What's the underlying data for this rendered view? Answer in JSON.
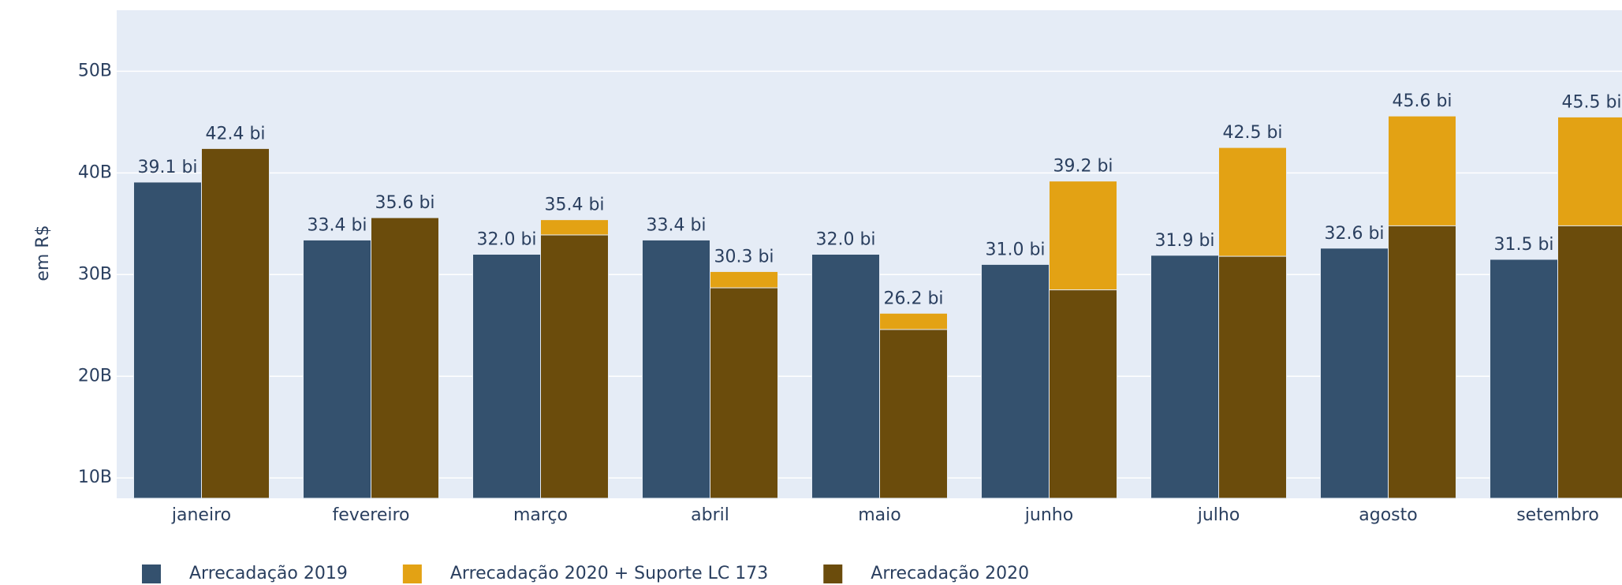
{
  "chart_data": {
    "type": "bar",
    "y_label": "em R$",
    "categories": [
      "janeiro",
      "fevereiro",
      "março",
      "abril",
      "maio",
      "junho",
      "julho",
      "agosto",
      "setembro"
    ],
    "series": [
      {
        "name": "Arrecadação 2019",
        "color": "#34516e",
        "slot": 0,
        "values": [
          39.1,
          33.4,
          32.0,
          33.4,
          32.0,
          31.0,
          31.9,
          32.6,
          31.5
        ],
        "value_labels": [
          "39.1 bi",
          "33.4 bi",
          "32.0 bi",
          "33.4 bi",
          "32.0 bi",
          "31.0 bi",
          "31.9 bi",
          "32.6 bi",
          "31.5 bi"
        ]
      },
      {
        "name": "Arrecadação 2020 + Suporte LC 173",
        "color": "#e3a214",
        "slot": 1,
        "values": [
          42.4,
          35.6,
          35.4,
          30.3,
          26.2,
          39.2,
          42.5,
          45.6,
          45.5
        ],
        "value_labels": [
          "42.4 bi",
          "35.6 bi",
          "35.4 bi",
          "30.3 bi",
          "26.2 bi",
          "39.2 bi",
          "42.5 bi",
          "45.6 bi",
          "45.5 bi"
        ]
      },
      {
        "name": "Arrecadação 2020",
        "color": "#6b4c0c",
        "slot": 1,
        "values": [
          42.4,
          35.6,
          33.9,
          28.7,
          24.6,
          28.5,
          31.8,
          34.8,
          34.8
        ]
      }
    ],
    "ylim": [
      8,
      56
    ],
    "yticks": [
      {
        "value": 10,
        "label": "10B"
      },
      {
        "value": 20,
        "label": "20B"
      },
      {
        "value": 30,
        "label": "30B"
      },
      {
        "value": 40,
        "label": "40B"
      },
      {
        "value": 50,
        "label": "50B"
      }
    ],
    "grid": true,
    "legend": "bottom"
  }
}
